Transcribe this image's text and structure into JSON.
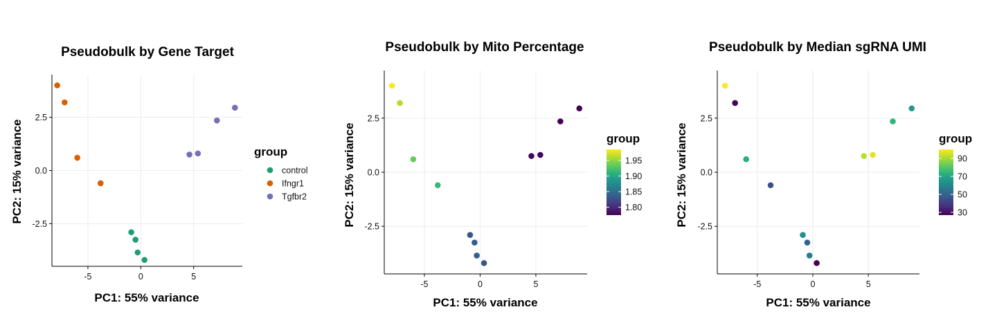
{
  "chart_data": [
    {
      "type": "scatter",
      "title": "Pseudobulk by Gene Target",
      "xlabel": "PC1: 55% variance",
      "ylabel": "PC2: 15% variance",
      "xlim": [
        -8.4,
        9.6
      ],
      "ylim": [
        -4.5,
        4.5
      ],
      "xticks": [
        -5,
        0,
        5
      ],
      "yticks": [
        -2.5,
        0.0,
        2.5
      ],
      "ytick_labels": [
        "-2.5",
        "0.0",
        "2.5"
      ],
      "grid": true,
      "legend": {
        "title": "group",
        "placement": "right",
        "kind": "categorical",
        "entries": [
          {
            "label": "control",
            "color": "#1b9e77"
          },
          {
            "label": "Ifngr1",
            "color": "#d95f02"
          },
          {
            "label": "Tgfbr2",
            "color": "#7570b3"
          }
        ]
      },
      "points": [
        {
          "x": -7.9,
          "y": 4.0,
          "group": "Ifngr1"
        },
        {
          "x": -7.2,
          "y": 3.2,
          "group": "Ifngr1"
        },
        {
          "x": -6.0,
          "y": 0.6,
          "group": "Ifngr1"
        },
        {
          "x": -3.8,
          "y": -0.6,
          "group": "Ifngr1"
        },
        {
          "x": 4.6,
          "y": 0.75,
          "group": "Tgfbr2"
        },
        {
          "x": 5.4,
          "y": 0.8,
          "group": "Tgfbr2"
        },
        {
          "x": 7.2,
          "y": 2.35,
          "group": "Tgfbr2"
        },
        {
          "x": 8.9,
          "y": 2.95,
          "group": "Tgfbr2"
        },
        {
          "x": -0.9,
          "y": -2.9,
          "group": "control"
        },
        {
          "x": -0.5,
          "y": -3.25,
          "group": "control"
        },
        {
          "x": -0.3,
          "y": -3.85,
          "group": "control"
        },
        {
          "x": 0.35,
          "y": -4.2,
          "group": "control"
        }
      ]
    },
    {
      "type": "scatter",
      "title": "Pseudobulk by Mito Percentage",
      "xlabel": "PC1: 55% variance",
      "ylabel": "PC2: 15% variance",
      "xlim": [
        -8.6,
        9.6
      ],
      "ylim": [
        -4.7,
        4.7
      ],
      "xticks": [
        -5,
        0,
        5
      ],
      "yticks": [
        -2.5,
        0.0,
        2.5
      ],
      "ytick_labels": [
        "-2.5",
        "0.0",
        "2.5"
      ],
      "grid": true,
      "legend": {
        "title": "group",
        "placement": "right",
        "kind": "continuous",
        "palette": "viridis",
        "min": 1.775,
        "max": 1.985,
        "ticks": [
          1.8,
          1.85,
          1.9,
          1.95
        ],
        "tick_labels": [
          "1.80",
          "1.85",
          "1.90",
          "1.95"
        ]
      },
      "points": [
        {
          "x": -7.9,
          "y": 4.0,
          "value": 1.985
        },
        {
          "x": -7.2,
          "y": 3.2,
          "value": 1.96
        },
        {
          "x": -6.0,
          "y": 0.6,
          "value": 1.935
        },
        {
          "x": -3.8,
          "y": -0.6,
          "value": 1.915
        },
        {
          "x": 4.6,
          "y": 0.75,
          "value": 1.78
        },
        {
          "x": 5.4,
          "y": 0.8,
          "value": 1.778
        },
        {
          "x": 7.2,
          "y": 2.35,
          "value": 1.775
        },
        {
          "x": 8.9,
          "y": 2.95,
          "value": 1.776
        },
        {
          "x": -0.9,
          "y": -2.9,
          "value": 1.83
        },
        {
          "x": -0.5,
          "y": -3.25,
          "value": 1.835
        },
        {
          "x": -0.3,
          "y": -3.85,
          "value": 1.84
        },
        {
          "x": 0.35,
          "y": -4.2,
          "value": 1.832
        }
      ]
    },
    {
      "type": "scatter",
      "title": "Pseudobulk by Median sgRNA UMI",
      "xlabel": "PC1: 55% variance",
      "ylabel": "PC2: 15% variance",
      "xlim": [
        -8.6,
        9.6
      ],
      "ylim": [
        -4.7,
        4.7
      ],
      "xticks": [
        -5,
        0,
        5
      ],
      "yticks": [
        -2.5,
        0.0,
        2.5
      ],
      "ytick_labels": [
        "-2.5",
        "0.0",
        "2.5"
      ],
      "grid": true,
      "legend": {
        "title": "group",
        "placement": "right",
        "kind": "continuous",
        "palette": "viridis",
        "min": 27,
        "max": 100,
        "ticks": [
          30,
          50,
          70,
          90
        ],
        "tick_labels": [
          "30",
          "50",
          "70",
          "90"
        ]
      },
      "points": [
        {
          "x": -7.9,
          "y": 4.0,
          "value": 100
        },
        {
          "x": -7.0,
          "y": 3.2,
          "value": 28
        },
        {
          "x": -6.0,
          "y": 0.6,
          "value": 72
        },
        {
          "x": -3.8,
          "y": -0.6,
          "value": 45
        },
        {
          "x": 4.6,
          "y": 0.75,
          "value": 92
        },
        {
          "x": 5.4,
          "y": 0.8,
          "value": 97
        },
        {
          "x": 7.2,
          "y": 2.35,
          "value": 74
        },
        {
          "x": 8.9,
          "y": 2.95,
          "value": 66
        },
        {
          "x": -0.9,
          "y": -2.9,
          "value": 63
        },
        {
          "x": -0.5,
          "y": -3.25,
          "value": 50
        },
        {
          "x": -0.3,
          "y": -3.85,
          "value": 58
        },
        {
          "x": 0.35,
          "y": -4.2,
          "value": 27
        }
      ]
    }
  ]
}
